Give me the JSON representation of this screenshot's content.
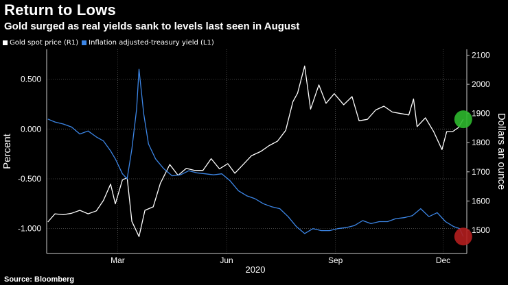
{
  "title": "Return to Lows",
  "subtitle": "Gold surged as real yields sank to levels last seen in August",
  "source": "Source: Bloomberg",
  "colors": {
    "gold": "#ffffff",
    "yield": "#3c86e6",
    "highlight_gold": "#2db82d",
    "highlight_yield": "#b31e1e"
  },
  "chart_data": {
    "type": "line",
    "title": "Return to Lows",
    "subtitle": "Gold surged as real yields sank to levels last seen in August",
    "xlabel": "2020",
    "x_ticks": [
      "Mar",
      "Jun",
      "Sep",
      "Dec"
    ],
    "x_tick_dates": [
      "2020-03-01",
      "2020-06-01",
      "2020-09-01",
      "2020-12-01"
    ],
    "xlim": [
      "2020-01-01",
      "2020-12-21"
    ],
    "ylabel_left": "Percent",
    "ylabel_right": "Dollars an ounce",
    "ylim_left": [
      -1.25,
      0.8
    ],
    "ylim_right": [
      1420,
      2120
    ],
    "y_ticks_left": [
      "0.500",
      "0.000",
      "-0.500",
      "-1.000"
    ],
    "y_ticks_left_values": [
      0.5,
      0.0,
      -0.5,
      -1.0
    ],
    "y_ticks_right": [
      "2100",
      "2000",
      "1900",
      "1800",
      "1700",
      "1600",
      "1500"
    ],
    "y_ticks_right_values": [
      2100,
      2000,
      1900,
      1800,
      1700,
      1600,
      1500
    ],
    "grid": true,
    "legend_position": "top-left",
    "series": [
      {
        "name": "Gold spot price (R1)",
        "axis": "right",
        "color": "#ffffff",
        "points": [
          [
            "2020-01-02",
            1528
          ],
          [
            "2020-01-08",
            1556
          ],
          [
            "2020-01-15",
            1553
          ],
          [
            "2020-01-22",
            1558
          ],
          [
            "2020-01-29",
            1568
          ],
          [
            "2020-02-05",
            1556
          ],
          [
            "2020-02-12",
            1566
          ],
          [
            "2020-02-18",
            1602
          ],
          [
            "2020-02-24",
            1658
          ],
          [
            "2020-02-28",
            1590
          ],
          [
            "2020-03-05",
            1672
          ],
          [
            "2020-03-09",
            1680
          ],
          [
            "2020-03-13",
            1530
          ],
          [
            "2020-03-19",
            1478
          ],
          [
            "2020-03-24",
            1568
          ],
          [
            "2020-03-31",
            1580
          ],
          [
            "2020-04-06",
            1660
          ],
          [
            "2020-04-14",
            1725
          ],
          [
            "2020-04-21",
            1688
          ],
          [
            "2020-04-28",
            1712
          ],
          [
            "2020-05-05",
            1705
          ],
          [
            "2020-05-12",
            1705
          ],
          [
            "2020-05-19",
            1745
          ],
          [
            "2020-05-26",
            1710
          ],
          [
            "2020-06-02",
            1728
          ],
          [
            "2020-06-08",
            1695
          ],
          [
            "2020-06-15",
            1725
          ],
          [
            "2020-06-22",
            1755
          ],
          [
            "2020-06-30",
            1770
          ],
          [
            "2020-07-07",
            1790
          ],
          [
            "2020-07-14",
            1805
          ],
          [
            "2020-07-21",
            1842
          ],
          [
            "2020-07-27",
            1940
          ],
          [
            "2020-07-31",
            1970
          ],
          [
            "2020-08-06",
            2063
          ],
          [
            "2020-08-11",
            1915
          ],
          [
            "2020-08-18",
            1998
          ],
          [
            "2020-08-24",
            1935
          ],
          [
            "2020-08-31",
            1968
          ],
          [
            "2020-09-08",
            1930
          ],
          [
            "2020-09-15",
            1958
          ],
          [
            "2020-09-21",
            1875
          ],
          [
            "2020-09-28",
            1880
          ],
          [
            "2020-10-05",
            1912
          ],
          [
            "2020-10-12",
            1925
          ],
          [
            "2020-10-19",
            1905
          ],
          [
            "2020-10-26",
            1900
          ],
          [
            "2020-11-02",
            1895
          ],
          [
            "2020-11-06",
            1950
          ],
          [
            "2020-11-09",
            1855
          ],
          [
            "2020-11-16",
            1885
          ],
          [
            "2020-11-23",
            1838
          ],
          [
            "2020-11-30",
            1776
          ],
          [
            "2020-12-04",
            1838
          ],
          [
            "2020-12-09",
            1838
          ],
          [
            "2020-12-14",
            1852
          ],
          [
            "2020-12-18",
            1880
          ]
        ],
        "last_value_marker": true
      },
      {
        "name": "Inflation adjusted-treasury yield (L1)",
        "axis": "left",
        "color": "#3c86e6",
        "points": [
          [
            "2020-01-02",
            0.1
          ],
          [
            "2020-01-08",
            0.07
          ],
          [
            "2020-01-15",
            0.05
          ],
          [
            "2020-01-22",
            0.02
          ],
          [
            "2020-01-29",
            -0.05
          ],
          [
            "2020-02-05",
            -0.02
          ],
          [
            "2020-02-12",
            -0.08
          ],
          [
            "2020-02-18",
            -0.12
          ],
          [
            "2020-02-24",
            -0.22
          ],
          [
            "2020-02-28",
            -0.3
          ],
          [
            "2020-03-05",
            -0.45
          ],
          [
            "2020-03-09",
            -0.5
          ],
          [
            "2020-03-13",
            -0.2
          ],
          [
            "2020-03-17",
            0.2
          ],
          [
            "2020-03-19",
            0.6
          ],
          [
            "2020-03-23",
            0.15
          ],
          [
            "2020-03-27",
            -0.15
          ],
          [
            "2020-04-02",
            -0.3
          ],
          [
            "2020-04-09",
            -0.4
          ],
          [
            "2020-04-16",
            -0.47
          ],
          [
            "2020-04-23",
            -0.46
          ],
          [
            "2020-04-30",
            -0.42
          ],
          [
            "2020-05-07",
            -0.44
          ],
          [
            "2020-05-14",
            -0.45
          ],
          [
            "2020-05-21",
            -0.46
          ],
          [
            "2020-05-28",
            -0.45
          ],
          [
            "2020-06-04",
            -0.52
          ],
          [
            "2020-06-11",
            -0.62
          ],
          [
            "2020-06-18",
            -0.67
          ],
          [
            "2020-06-25",
            -0.7
          ],
          [
            "2020-07-02",
            -0.75
          ],
          [
            "2020-07-09",
            -0.78
          ],
          [
            "2020-07-16",
            -0.8
          ],
          [
            "2020-07-23",
            -0.88
          ],
          [
            "2020-07-30",
            -0.98
          ],
          [
            "2020-08-06",
            -1.05
          ],
          [
            "2020-08-13",
            -1.0
          ],
          [
            "2020-08-20",
            -1.02
          ],
          [
            "2020-08-27",
            -1.02
          ],
          [
            "2020-09-03",
            -1.0
          ],
          [
            "2020-09-10",
            -0.99
          ],
          [
            "2020-09-17",
            -0.97
          ],
          [
            "2020-09-24",
            -0.92
          ],
          [
            "2020-10-01",
            -0.95
          ],
          [
            "2020-10-08",
            -0.93
          ],
          [
            "2020-10-15",
            -0.93
          ],
          [
            "2020-10-22",
            -0.9
          ],
          [
            "2020-10-29",
            -0.89
          ],
          [
            "2020-11-05",
            -0.87
          ],
          [
            "2020-11-12",
            -0.8
          ],
          [
            "2020-11-19",
            -0.88
          ],
          [
            "2020-11-26",
            -0.84
          ],
          [
            "2020-12-03",
            -0.93
          ],
          [
            "2020-12-10",
            -0.98
          ],
          [
            "2020-12-15",
            -1.0
          ],
          [
            "2020-12-18",
            -1.08
          ]
        ],
        "last_value_marker": true
      }
    ]
  }
}
